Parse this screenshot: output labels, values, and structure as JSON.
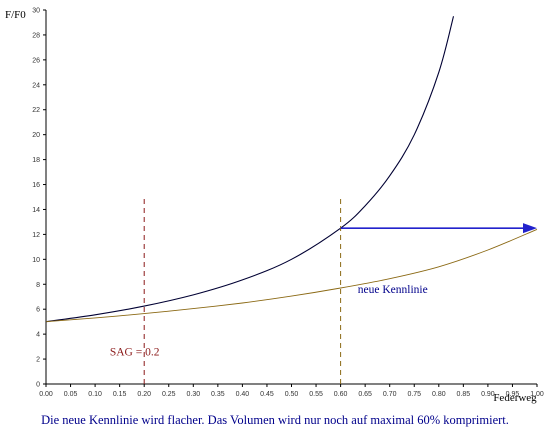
{
  "chart_data": {
    "type": "line",
    "xlabel": "Federweg",
    "ylabel": "F/F0",
    "xlim": [
      0,
      1
    ],
    "ylim": [
      0,
      30
    ],
    "x_ticks": [
      "0.00",
      "0.05",
      "0.10",
      "0.15",
      "0.20",
      "0.25",
      "0.30",
      "0.35",
      "0.40",
      "0.45",
      "0.50",
      "0.55",
      "0.60",
      "0.65",
      "0.70",
      "0.75",
      "0.80",
      "0.85",
      "0.90",
      "0.95",
      "1.00"
    ],
    "y_ticks": [
      "0",
      "2",
      "4",
      "6",
      "8",
      "10",
      "12",
      "14",
      "16",
      "18",
      "20",
      "22",
      "24",
      "26",
      "28",
      "30"
    ],
    "series": [
      {
        "color": "#000033",
        "x": [
          0,
          0.1,
          0.2,
          0.3,
          0.4,
          0.5,
          0.6,
          0.65,
          0.7,
          0.75,
          0.8,
          0.83
        ],
        "y": [
          5.0,
          5.55,
          6.25,
          7.15,
          8.35,
          10.0,
          12.5,
          14.3,
          16.7,
          20.0,
          25.0,
          29.5
        ]
      },
      {
        "name": "neue Kennlinie",
        "color": "#8B6914",
        "x": [
          0,
          0.1,
          0.2,
          0.3,
          0.4,
          0.5,
          0.6,
          0.7,
          0.8,
          0.9,
          1.0
        ],
        "y": [
          5.0,
          5.3,
          5.65,
          6.05,
          6.5,
          7.05,
          7.7,
          8.45,
          9.4,
          10.75,
          12.4
        ]
      }
    ],
    "vlines": [
      {
        "x": 0.2,
        "y_from": 0,
        "y_to": 15,
        "color": "#8B1A1A"
      },
      {
        "x": 0.6,
        "y_from": 0,
        "y_to": 15,
        "color": "#8B6914"
      }
    ],
    "arrow": {
      "x_from": 0.6,
      "x_to": 1.0,
      "y": 12.5,
      "color": "#2222CC"
    },
    "annotations": [
      {
        "text": "neue Kennlinie",
        "x": 0.635,
        "y": 7.3,
        "color": "#00008B"
      },
      {
        "text": "SAG = 0.2",
        "x": 0.13,
        "y": 2.3,
        "color": "#8B1A1A"
      }
    ],
    "grid": false
  },
  "caption": "Die neue Kennlinie wird flacher. Das Volumen wird nur noch auf maximal 60% komprimiert."
}
